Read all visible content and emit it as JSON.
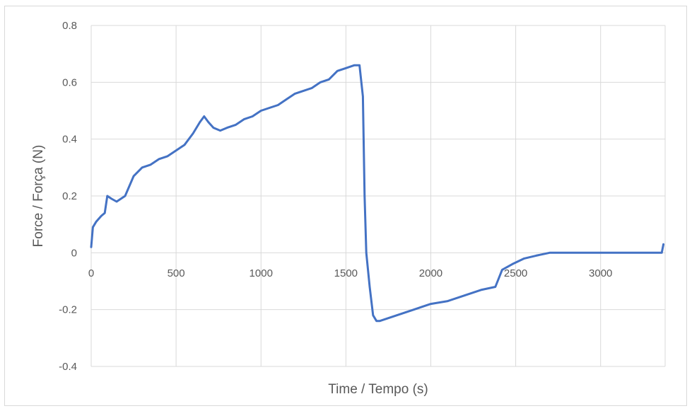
{
  "chart_data": {
    "type": "line",
    "title": "",
    "xlabel": "Time / Tempo (s)",
    "ylabel": "Force / Força (N)",
    "xlim": [
      0,
      3380
    ],
    "ylim": [
      -0.4,
      0.8
    ],
    "x_ticks": [
      0,
      500,
      1000,
      1500,
      2000,
      2500,
      3000
    ],
    "y_ticks": [
      -0.4,
      -0.2,
      0,
      0.2,
      0.4,
      0.6,
      0.8
    ],
    "x_tick_labels": [
      "0",
      "500",
      "1000",
      "1500",
      "2000",
      "2500",
      "3000"
    ],
    "y_tick_labels": [
      "-0.4",
      "-0.2",
      "0",
      "0.2",
      "0.4",
      "0.6",
      "0.8"
    ],
    "grid": true,
    "legend": "none",
    "series": [
      {
        "color": "#4472c4",
        "x": [
          0,
          10,
          30,
          60,
          80,
          95,
          120,
          150,
          200,
          250,
          300,
          350,
          400,
          450,
          500,
          550,
          600,
          640,
          665,
          690,
          720,
          760,
          800,
          850,
          900,
          950,
          1000,
          1050,
          1100,
          1150,
          1200,
          1250,
          1300,
          1350,
          1400,
          1450,
          1500,
          1550,
          1580,
          1600,
          1610,
          1620,
          1640,
          1660,
          1680,
          1700,
          1750,
          1800,
          1850,
          1900,
          1950,
          2000,
          2100,
          2200,
          2300,
          2380,
          2400,
          2420,
          2480,
          2550,
          2620,
          2700,
          2800,
          2900,
          3000,
          3100,
          3200,
          3300,
          3360,
          3370
        ],
        "y": [
          0.02,
          0.09,
          0.11,
          0.13,
          0.14,
          0.2,
          0.19,
          0.18,
          0.2,
          0.27,
          0.3,
          0.31,
          0.33,
          0.34,
          0.36,
          0.38,
          0.42,
          0.46,
          0.48,
          0.46,
          0.44,
          0.43,
          0.44,
          0.45,
          0.47,
          0.48,
          0.5,
          0.51,
          0.52,
          0.54,
          0.56,
          0.57,
          0.58,
          0.6,
          0.61,
          0.64,
          0.65,
          0.66,
          0.66,
          0.55,
          0.2,
          0.0,
          -0.12,
          -0.22,
          -0.24,
          -0.24,
          -0.23,
          -0.22,
          -0.21,
          -0.2,
          -0.19,
          -0.18,
          -0.17,
          -0.15,
          -0.13,
          -0.12,
          -0.09,
          -0.06,
          -0.04,
          -0.02,
          -0.01,
          0.0,
          0.0,
          0.0,
          0.0,
          0.0,
          0.0,
          0.0,
          0.0,
          0.03
        ]
      }
    ]
  }
}
